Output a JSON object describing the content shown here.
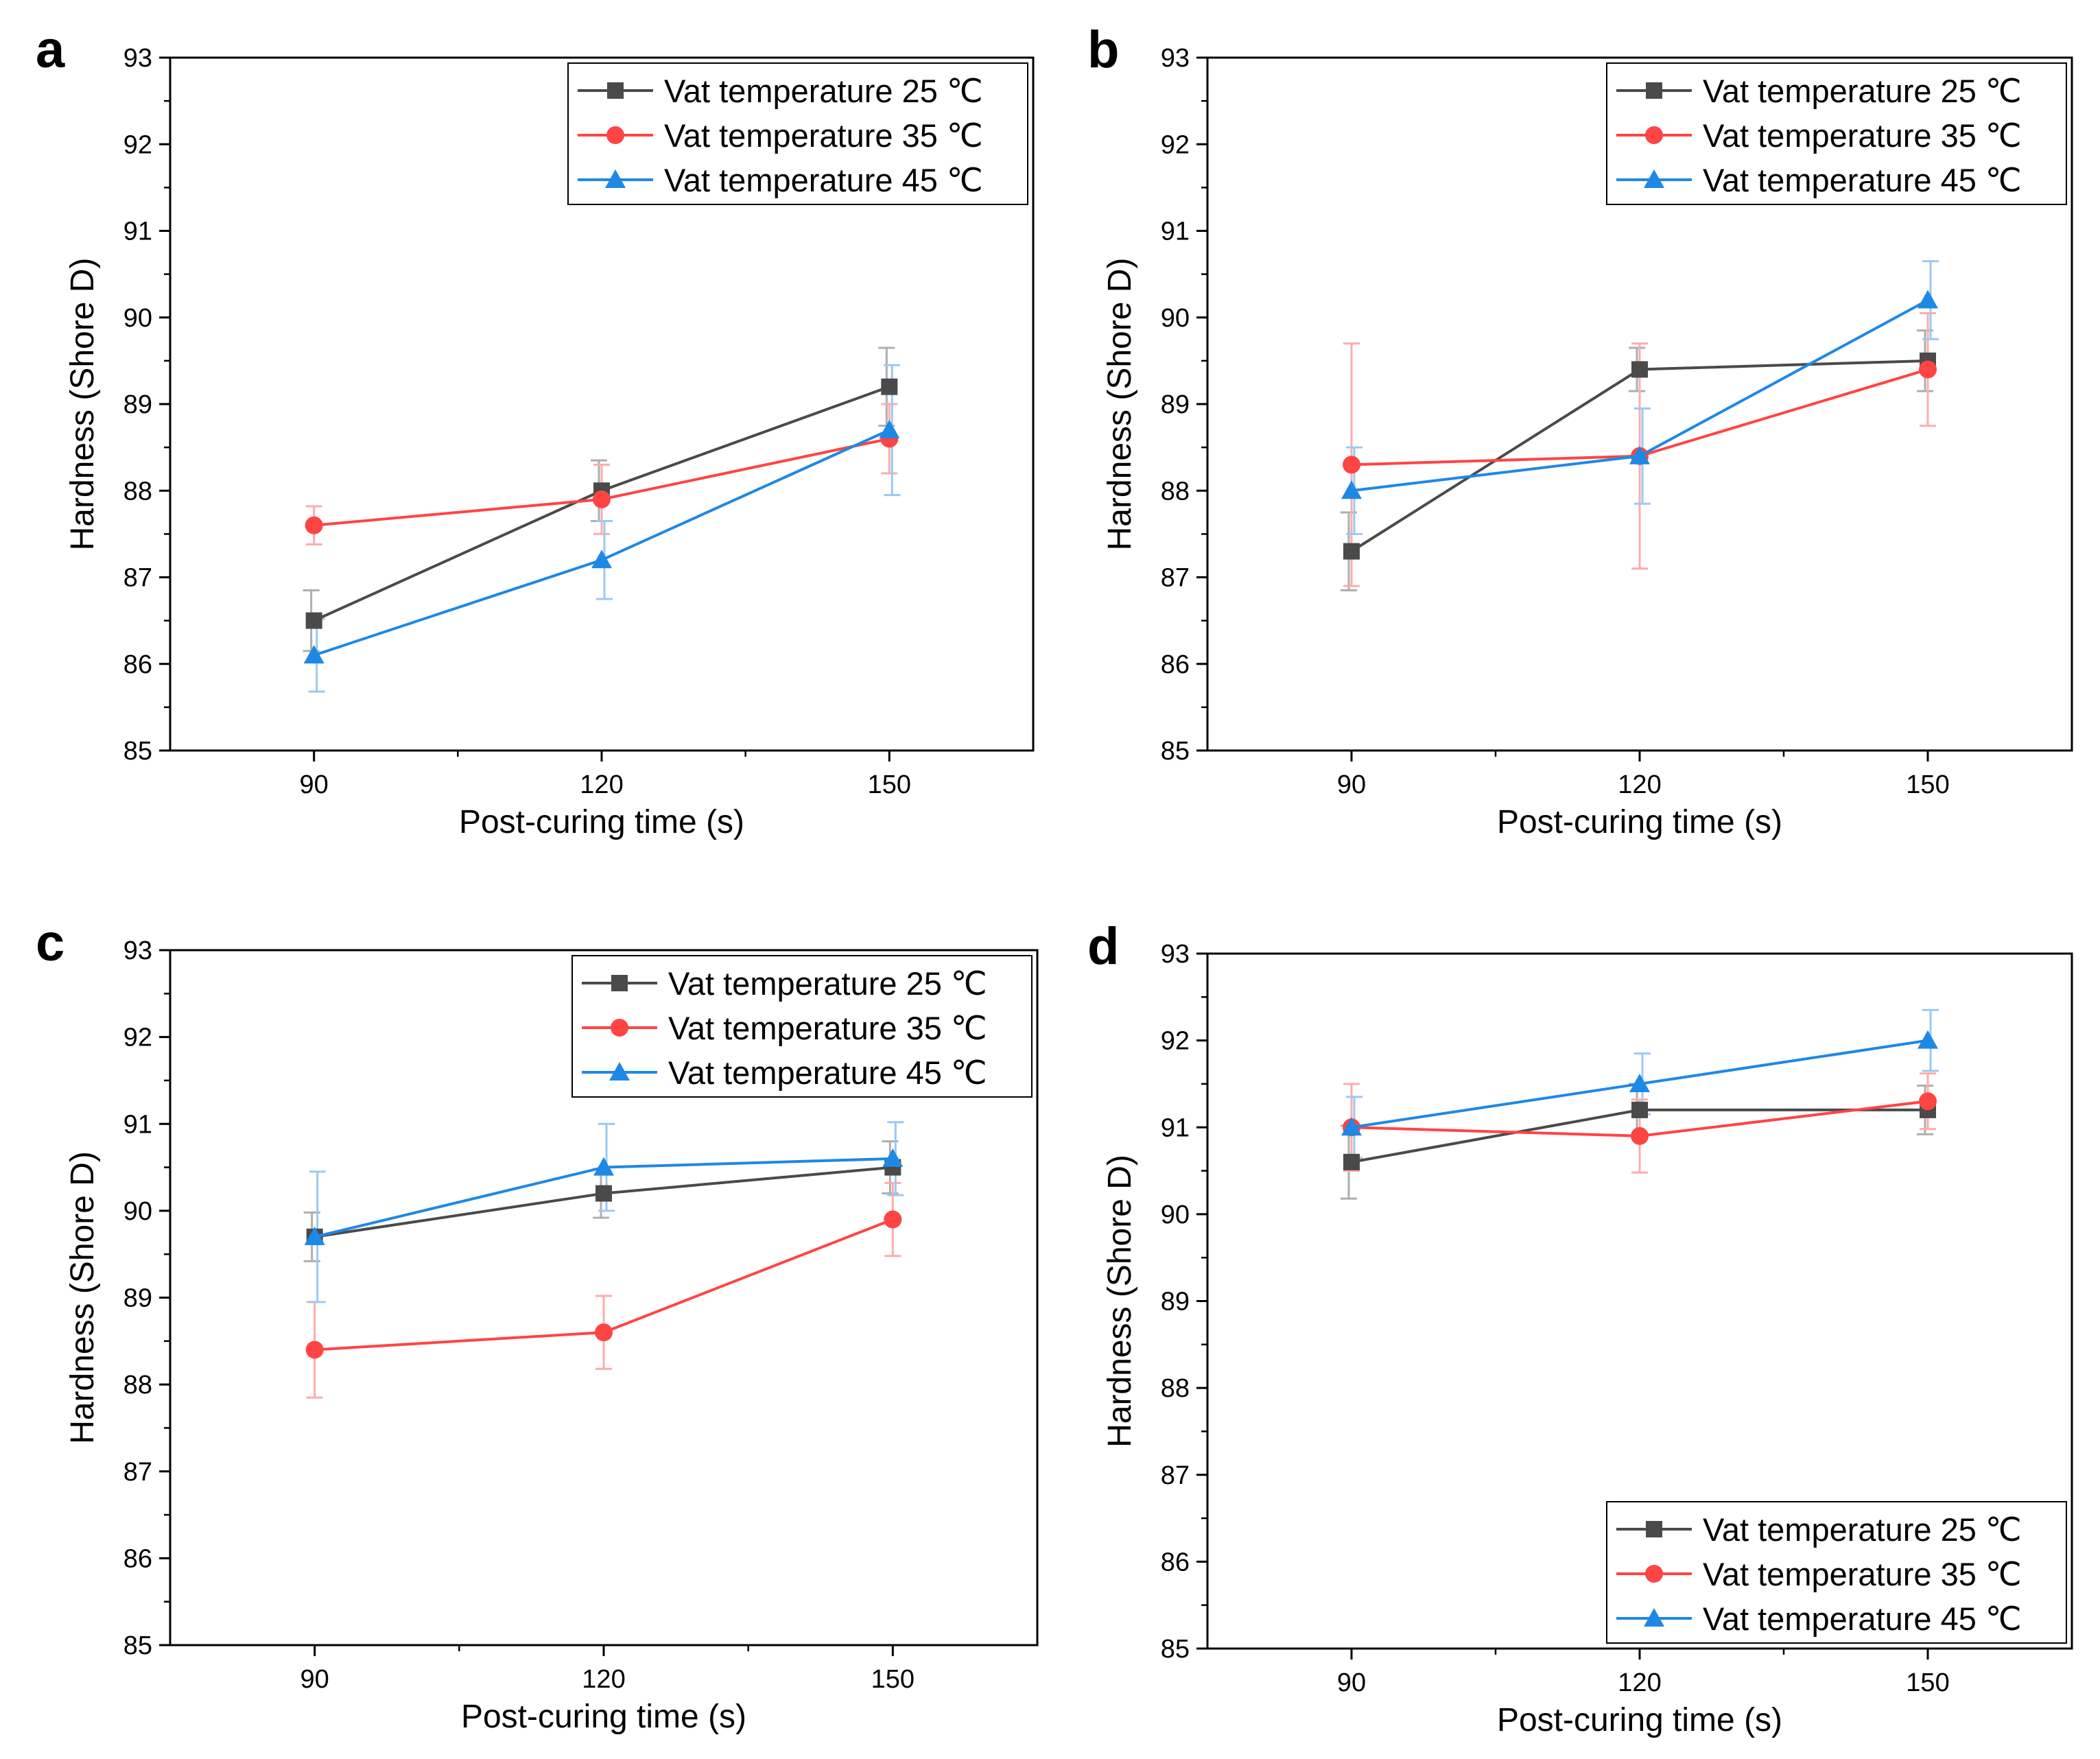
{
  "chart_data": [
    {
      "panel": "a",
      "type": "line",
      "xlabel": "Post-curing time (s)",
      "ylabel": "Hardness (Shore D)",
      "x": [
        90,
        120,
        150
      ],
      "xlim": [
        75,
        165
      ],
      "ylim": [
        85,
        93
      ],
      "legend_position": "top-right",
      "series": [
        {
          "name": "Vat temperature 25 ℃",
          "marker": "square",
          "color": "#4a4a4a",
          "values": [
            86.5,
            88.0,
            89.2
          ],
          "errors": [
            0.35,
            0.35,
            0.45
          ]
        },
        {
          "name": "Vat temperature 35 ℃",
          "marker": "circle",
          "color": "#ff4444",
          "values": [
            87.6,
            87.9,
            88.6
          ],
          "errors": [
            0.22,
            0.4,
            0.4
          ]
        },
        {
          "name": "Vat temperature 45 ℃",
          "marker": "triangle",
          "color": "#1e88e5",
          "values": [
            86.1,
            87.2,
            88.7
          ],
          "errors": [
            0.42,
            0.45,
            0.75
          ]
        }
      ]
    },
    {
      "panel": "b",
      "type": "line",
      "xlabel": "Post-curing time (s)",
      "ylabel": "Hardness (Shore D)",
      "x": [
        90,
        120,
        150
      ],
      "xlim": [
        75,
        165
      ],
      "ylim": [
        85,
        93
      ],
      "legend_position": "top-right",
      "series": [
        {
          "name": "Vat temperature 25 ℃",
          "marker": "square",
          "color": "#4a4a4a",
          "values": [
            87.3,
            89.4,
            89.5
          ],
          "errors": [
            0.45,
            0.25,
            0.35
          ]
        },
        {
          "name": "Vat temperature 35 ℃",
          "marker": "circle",
          "color": "#ff4444",
          "values": [
            88.3,
            88.4,
            89.4
          ],
          "errors": [
            1.4,
            1.3,
            0.65
          ]
        },
        {
          "name": "Vat temperature 45 ℃",
          "marker": "triangle",
          "color": "#1e88e5",
          "values": [
            88.0,
            88.4,
            90.2
          ],
          "errors": [
            0.5,
            0.55,
            0.45
          ]
        }
      ]
    },
    {
      "panel": "c",
      "type": "line",
      "xlabel": "Post-curing time (s)",
      "ylabel": "Hardness (Shore D)",
      "x": [
        90,
        120,
        150
      ],
      "xlim": [
        75,
        165
      ],
      "ylim": [
        85,
        93
      ],
      "legend_position": "top-right",
      "series": [
        {
          "name": "Vat temperature 25 ℃",
          "marker": "square",
          "color": "#4a4a4a",
          "values": [
            89.7,
            90.2,
            90.5
          ],
          "errors": [
            0.28,
            0.28,
            0.3
          ]
        },
        {
          "name": "Vat temperature 35 ℃",
          "marker": "circle",
          "color": "#ff4444",
          "values": [
            88.4,
            88.6,
            89.9
          ],
          "errors": [
            0.55,
            0.42,
            0.42
          ]
        },
        {
          "name": "Vat temperature 45 ℃",
          "marker": "triangle",
          "color": "#1e88e5",
          "values": [
            89.7,
            90.5,
            90.6
          ],
          "errors": [
            0.75,
            0.5,
            0.42
          ]
        }
      ]
    },
    {
      "panel": "d",
      "type": "line",
      "xlabel": "Post-curing time (s)",
      "ylabel": "Hardness (Shore D)",
      "x": [
        90,
        120,
        150
      ],
      "xlim": [
        75,
        165
      ],
      "ylim": [
        85,
        93
      ],
      "legend_position": "bottom-right",
      "series": [
        {
          "name": "Vat temperature 25 ℃",
          "marker": "square",
          "color": "#4a4a4a",
          "values": [
            90.6,
            91.2,
            91.2
          ],
          "errors": [
            0.42,
            0.3,
            0.28
          ]
        },
        {
          "name": "Vat temperature 35 ℃",
          "marker": "circle",
          "color": "#ff4444",
          "values": [
            91.0,
            90.9,
            91.3
          ],
          "errors": [
            0.5,
            0.42,
            0.32
          ]
        },
        {
          "name": "Vat temperature 45 ℃",
          "marker": "triangle",
          "color": "#1e88e5",
          "values": [
            91.0,
            91.5,
            92.0
          ],
          "errors": [
            0.35,
            0.35,
            0.35
          ]
        }
      ]
    }
  ]
}
